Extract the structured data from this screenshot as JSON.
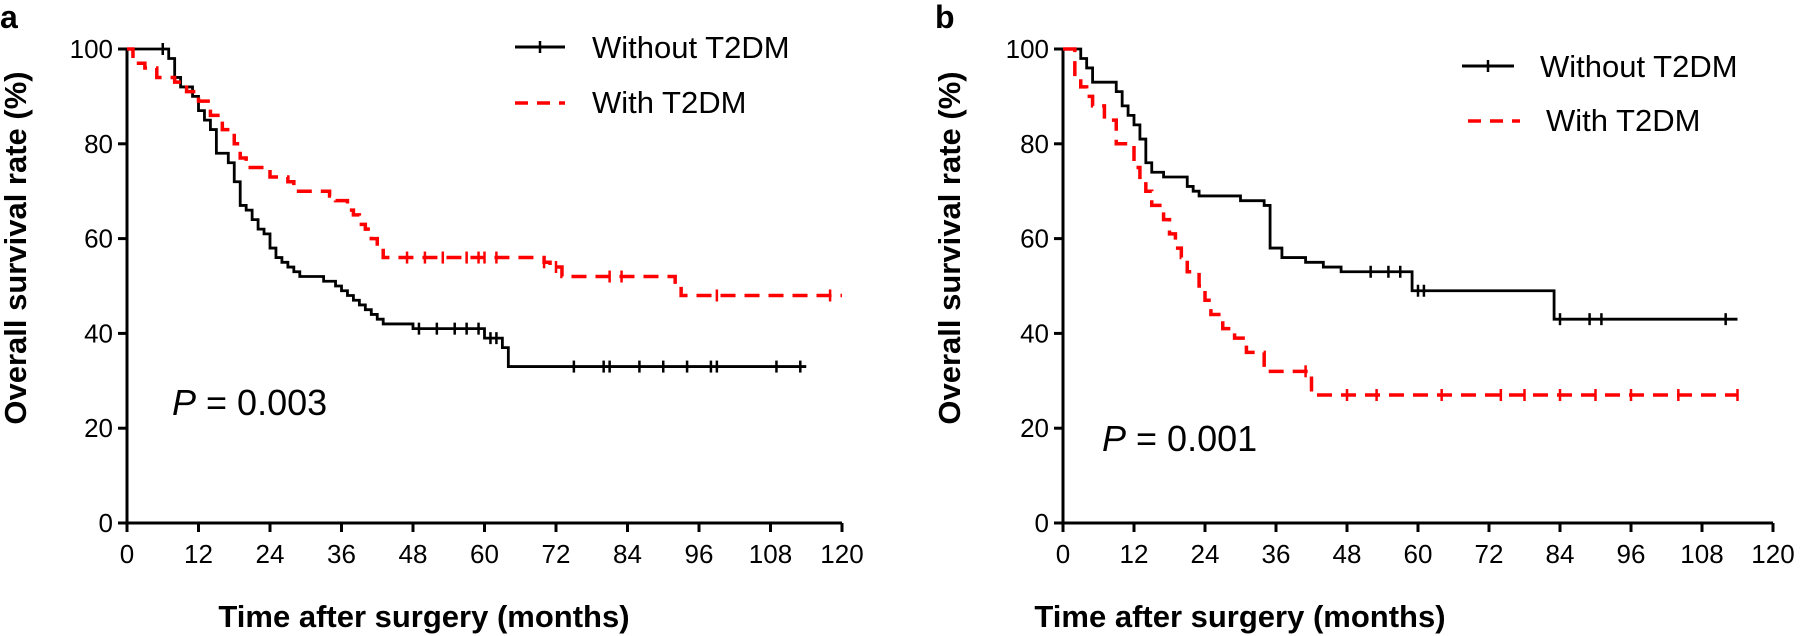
{
  "chart_data": [
    {
      "type": "line",
      "panel": "a",
      "xlabel": "Time after surgery (months)",
      "ylabel": "Overall survival rate (%)",
      "xlim": [
        0,
        120
      ],
      "ylim": [
        0,
        100
      ],
      "xticks": [
        0,
        12,
        24,
        36,
        48,
        60,
        72,
        84,
        96,
        108,
        120
      ],
      "yticks": [
        0,
        20,
        40,
        60,
        80,
        100
      ],
      "grid": false,
      "legend_position": "top-right",
      "annotation": {
        "p": "P",
        "rest": " = 0.003"
      },
      "series": [
        {
          "name": "Without T2DM",
          "color": "#000000",
          "style": "solid",
          "steps": [
            [
              0,
              100
            ],
            [
              6,
              100
            ],
            [
              7,
              98
            ],
            [
              8,
              94
            ],
            [
              9,
              92
            ],
            [
              11,
              90
            ],
            [
              12,
              87
            ],
            [
              13,
              85
            ],
            [
              14,
              83
            ],
            [
              15,
              78
            ],
            [
              17,
              76
            ],
            [
              18,
              72
            ],
            [
              19,
              67
            ],
            [
              20,
              66
            ],
            [
              21,
              64
            ],
            [
              22,
              62
            ],
            [
              23,
              61
            ],
            [
              24,
              58
            ],
            [
              25,
              56
            ],
            [
              26,
              55
            ],
            [
              27,
              54
            ],
            [
              28,
              53
            ],
            [
              29,
              52
            ],
            [
              33,
              51
            ],
            [
              35,
              50
            ],
            [
              36,
              49
            ],
            [
              37,
              48
            ],
            [
              38,
              47
            ],
            [
              39,
              46
            ],
            [
              40,
              45
            ],
            [
              41,
              44
            ],
            [
              42,
              43
            ],
            [
              43,
              42
            ],
            [
              48,
              41
            ],
            [
              60,
              39
            ],
            [
              63,
              37
            ],
            [
              64,
              33
            ],
            [
              114,
              33
            ]
          ],
          "censors": [
            6,
            49,
            52,
            55,
            57,
            59,
            61,
            62,
            75,
            80,
            81,
            86,
            90,
            94,
            98,
            99,
            109,
            113
          ]
        },
        {
          "name": "With T2DM",
          "color": "#ff0000",
          "style": "dashed",
          "steps": [
            [
              0,
              100
            ],
            [
              1,
              97
            ],
            [
              3,
              96
            ],
            [
              5,
              94
            ],
            [
              8,
              93
            ],
            [
              10,
              91
            ],
            [
              12,
              89
            ],
            [
              14,
              86
            ],
            [
              16,
              83
            ],
            [
              18,
              80
            ],
            [
              19,
              77
            ],
            [
              20,
              75
            ],
            [
              24,
              73
            ],
            [
              27,
              72
            ],
            [
              28,
              70
            ],
            [
              34,
              69
            ],
            [
              35,
              68
            ],
            [
              37,
              66
            ],
            [
              38,
              65
            ],
            [
              39,
              63
            ],
            [
              40,
              62
            ],
            [
              41,
              60
            ],
            [
              42,
              58
            ],
            [
              43,
              56
            ],
            [
              70,
              55
            ],
            [
              71,
              54
            ],
            [
              73,
              52
            ],
            [
              92,
              50
            ],
            [
              93,
              48
            ],
            [
              120,
              48
            ]
          ],
          "censors": [
            47,
            50,
            53,
            57,
            59,
            60,
            62,
            70,
            72,
            81,
            83,
            99,
            118
          ]
        }
      ]
    },
    {
      "type": "line",
      "panel": "b",
      "xlabel": "Time after surgery (months)",
      "ylabel": "Overall survival rate (%)",
      "xlim": [
        0,
        120
      ],
      "ylim": [
        0,
        100
      ],
      "xticks": [
        0,
        12,
        24,
        36,
        48,
        60,
        72,
        84,
        96,
        108,
        120
      ],
      "yticks": [
        0,
        20,
        40,
        60,
        80,
        100
      ],
      "grid": false,
      "legend_position": "top-right",
      "annotation": {
        "p": "P",
        "rest": " = 0.001"
      },
      "series": [
        {
          "name": "Without T2DM",
          "color": "#000000",
          "style": "solid",
          "steps": [
            [
              0,
              100
            ],
            [
              3,
              98
            ],
            [
              4,
              96
            ],
            [
              5,
              93
            ],
            [
              9,
              91
            ],
            [
              10,
              88
            ],
            [
              11,
              86
            ],
            [
              12,
              84
            ],
            [
              13,
              81
            ],
            [
              14,
              76
            ],
            [
              15,
              74
            ],
            [
              17,
              73
            ],
            [
              21,
              71
            ],
            [
              22,
              70
            ],
            [
              23,
              69
            ],
            [
              30,
              68
            ],
            [
              34,
              67
            ],
            [
              35,
              58
            ],
            [
              37,
              56
            ],
            [
              41,
              55
            ],
            [
              44,
              54
            ],
            [
              47,
              53
            ],
            [
              59,
              49
            ],
            [
              83,
              43
            ],
            [
              114,
              43
            ]
          ],
          "censors": [
            52,
            55,
            57,
            60,
            61,
            84,
            89,
            91,
            112
          ]
        },
        {
          "name": "With T2DM",
          "color": "#ff0000",
          "style": "dashed",
          "steps": [
            [
              0,
              100
            ],
            [
              2,
              94
            ],
            [
              3,
              92
            ],
            [
              4,
              90
            ],
            [
              5,
              88
            ],
            [
              7,
              85
            ],
            [
              9,
              80
            ],
            [
              12,
              75
            ],
            [
              13,
              72
            ],
            [
              14,
              70
            ],
            [
              15,
              67
            ],
            [
              17,
              64
            ],
            [
              18,
              61
            ],
            [
              19,
              58
            ],
            [
              20,
              56
            ],
            [
              21,
              53
            ],
            [
              23,
              50
            ],
            [
              24,
              47
            ],
            [
              25,
              44
            ],
            [
              27,
              41
            ],
            [
              29,
              39
            ],
            [
              31,
              36
            ],
            [
              34,
              32
            ],
            [
              42,
              27
            ],
            [
              114,
              27
            ]
          ],
          "censors": [
            41,
            48,
            53,
            64,
            74,
            78,
            84,
            90,
            96,
            104,
            114
          ]
        }
      ]
    }
  ]
}
